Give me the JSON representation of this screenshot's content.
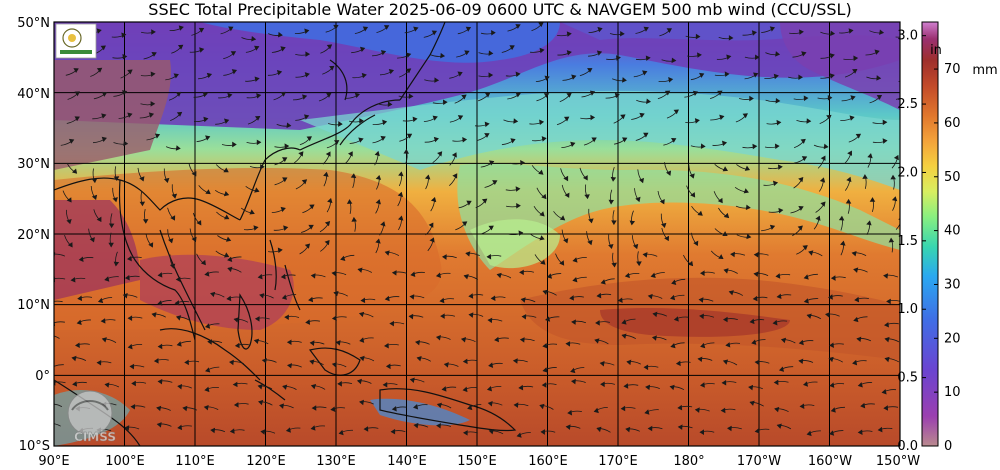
{
  "title": "SSEC Total Precipitable Water  2025-06-09 0600 UTC & NAVGEM 500 mb wind (CCU/SSL)",
  "watermark": "CIMSS",
  "lat_labels": [
    "50°N",
    "40°N",
    "30°N",
    "20°N",
    "10°N",
    "0°",
    "10°S"
  ],
  "lon_labels": [
    "90°E",
    "100°E",
    "110°E",
    "120°E",
    "130°E",
    "140°E",
    "150°E",
    "160°E",
    "170°E",
    "180°",
    "170°W",
    "160°W",
    "150°W"
  ],
  "colorbar": {
    "inch_unit": "in",
    "mm_unit": "mm",
    "inch_ticks": [
      "3.0",
      "2.5",
      "2.0",
      "1.5",
      "1.0",
      "0.5",
      "0.0"
    ],
    "mm_ticks": [
      "70",
      "60",
      "50",
      "40",
      "30",
      "20",
      "10",
      "0"
    ],
    "colors": [
      "#b98a8e",
      "#9b3fb0",
      "#7a3fc8",
      "#3f5fe0",
      "#2aa0f0",
      "#38d6b0",
      "#70ee80",
      "#c8ef60",
      "#f5d040",
      "#f3a23a",
      "#e0762c",
      "#c24a2a",
      "#a0302c",
      "#9a2f6a",
      "#c46cc8"
    ]
  },
  "colors": {
    "land_outline": "#111111",
    "grid": "#000000",
    "arrow": "#1a1a1a"
  }
}
